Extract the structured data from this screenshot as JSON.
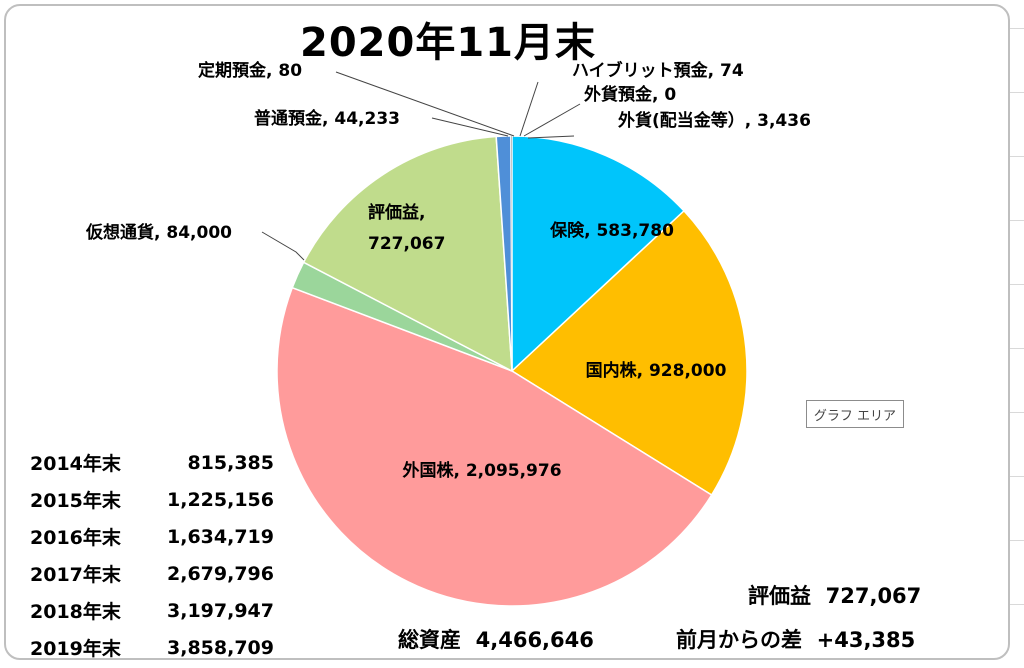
{
  "title": "2020年11月末",
  "tooltip": "グラフ エリア",
  "chart_data": {
    "type": "pie",
    "title": "2020年11月末",
    "slices": [
      {
        "name": "保険",
        "value": 583780,
        "label": "保険, 583,780",
        "color": "#00c5fb"
      },
      {
        "name": "国内株",
        "value": 928000,
        "label": "国内株, 928,000",
        "color": "#ffbe00"
      },
      {
        "name": "外国株",
        "value": 2095976,
        "label": "外国株, 2,095,976",
        "color": "#ff9b9b"
      },
      {
        "name": "仮想通貨",
        "value": 84000,
        "label": "仮想通貨, 84,000",
        "color": "#9bd69b"
      },
      {
        "name": "評価益",
        "value": 727067,
        "label": "評価益,\n727,067",
        "color": "#c0dc8c"
      },
      {
        "name": "普通預金",
        "value": 44233,
        "label": "普通預金, 44,233",
        "color": "#4f8fd8"
      },
      {
        "name": "定期預金",
        "value": 80,
        "label": "定期預金, 80",
        "color": "#2f6bbd"
      },
      {
        "name": "ハイブリット預金",
        "value": 74,
        "label": "ハイブリット預金, 74",
        "color": "#7a7a7a"
      },
      {
        "name": "外貨預金",
        "value": 0,
        "label": "外貨預金, 0",
        "color": "#666666"
      },
      {
        "name": "外貨(配当金等)",
        "value": 3436,
        "label": "外貨(配当金等）, 3,436",
        "color": "#a5a5a5"
      }
    ]
  },
  "history": [
    {
      "year": "2014年末",
      "value": "815,385"
    },
    {
      "year": "2015年末",
      "value": "1,225,156"
    },
    {
      "year": "2016年末",
      "value": "1,634,719"
    },
    {
      "year": "2017年末",
      "value": "2,679,796"
    },
    {
      "year": "2018年末",
      "value": "3,197,947"
    },
    {
      "year": "2019年末",
      "value": "3,858,709"
    }
  ],
  "summary": {
    "total_label": "総資産",
    "total_value": "4,466,646",
    "gain_label": "評価益",
    "gain_value": "727,067",
    "diff_label": "前月からの差",
    "diff_value": "+43,385"
  }
}
